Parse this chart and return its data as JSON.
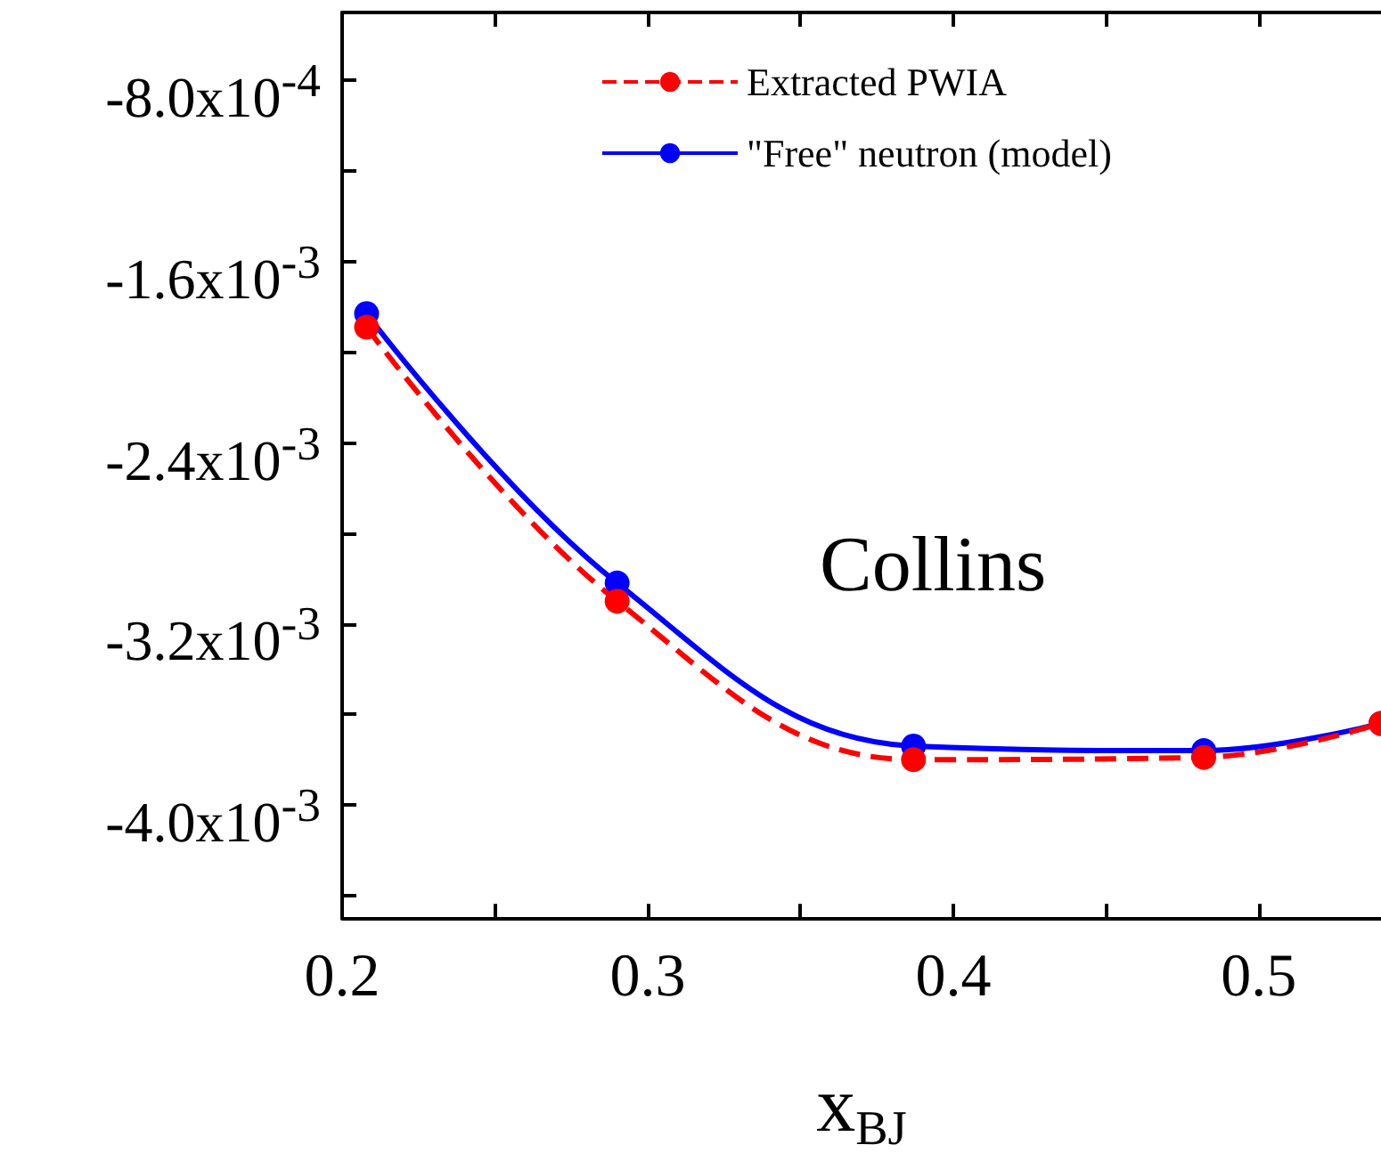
{
  "chart_data": {
    "type": "line",
    "xlabel": "x$_{BJ}$",
    "annotations": [
      "Collins"
    ],
    "xlim": [
      0.2,
      0.54
    ],
    "xticks": [
      0.2,
      {
        "value": 0.25,
        "label": null
      },
      0.3,
      {
        "value": 0.35,
        "label": null
      },
      0.4,
      {
        "value": 0.45,
        "label": null
      },
      0.5
    ],
    "ylim": [
      -0.0045,
      -0.0005
    ],
    "yticks": [
      {
        "value": -0.0008,
        "label": "-8.0x10$^{-4}$"
      },
      {
        "value": -0.0012,
        "label": null
      },
      {
        "value": -0.0016,
        "label": "-1.6x10$^{-3}$"
      },
      {
        "value": -0.002,
        "label": null
      },
      {
        "value": -0.0024,
        "label": "-2.4x10$^{-3}$"
      },
      {
        "value": -0.0028,
        "label": null
      },
      {
        "value": -0.0032,
        "label": "-3.2x10$^{-3}$"
      },
      {
        "value": -0.0036,
        "label": null
      },
      {
        "value": -0.004,
        "label": "-4.0x10$^{-3}$"
      },
      {
        "value": -0.0044,
        "label": null
      }
    ],
    "legend": "top left",
    "grid": false,
    "marker": "circle",
    "series": [
      {
        "name": "Extracted PWIA",
        "color": "#ff0000",
        "line_style": "dashed",
        "x": [
          0.208,
          0.29,
          0.387,
          0.482,
          0.54
        ],
        "values": [
          -0.00189,
          -0.0031,
          -0.0038,
          -0.00379,
          -0.00364
        ]
      },
      {
        "name": "\"Free\" neutron (model)",
        "color": "#0000ff",
        "line_style": "solid",
        "x": [
          0.208,
          0.29,
          0.387,
          0.482,
          0.54
        ],
        "values": [
          -0.00183,
          -0.00302,
          -0.00374,
          -0.00376,
          -0.00364
        ]
      }
    ]
  }
}
